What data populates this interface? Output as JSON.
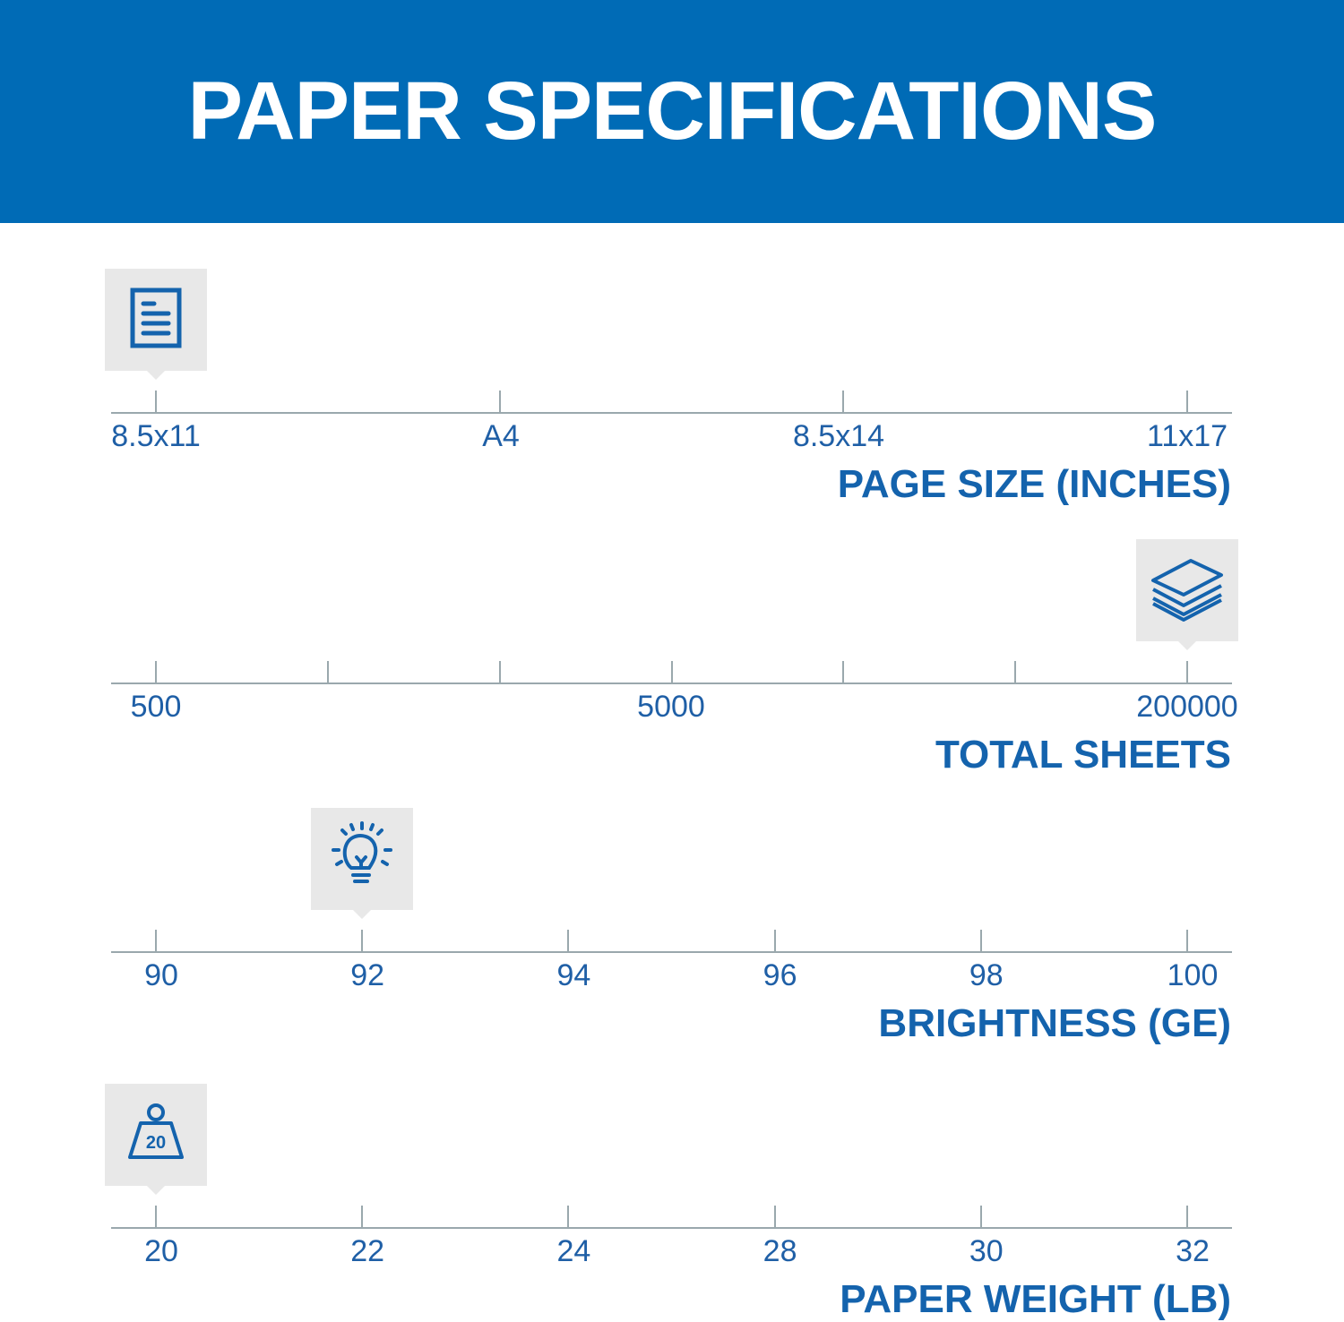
{
  "header": {
    "title": "PAPER SPECIFICATIONS"
  },
  "colors": {
    "banner": "#006bb6",
    "text": "#1f5fa6",
    "icon": "#1463ad",
    "marker_bg": "#e8e8e8"
  },
  "scales": [
    {
      "title": "PAGE SIZE (INCHES)",
      "icon": "document-icon",
      "ticks": [
        "8.5x11",
        "A4",
        "8.5x14",
        "11x17"
      ],
      "labels": [
        "8.5x11",
        "A4",
        "8.5x14",
        "11x17"
      ],
      "selected": "8.5x11"
    },
    {
      "title": "TOTAL SHEETS",
      "icon": "paper-stack-icon",
      "ticks": [
        "",
        "",
        "",
        "",
        "",
        "",
        ""
      ],
      "labels": [
        "500",
        "5000",
        "200000"
      ],
      "selected": "200000"
    },
    {
      "title": "BRIGHTNESS (GE)",
      "icon": "lightbulb-icon",
      "ticks": [
        "90",
        "92",
        "94",
        "96",
        "98",
        "100"
      ],
      "labels": [
        "90",
        "92",
        "94",
        "96",
        "98",
        "100"
      ],
      "selected": "92"
    },
    {
      "title": "PAPER WEIGHT (LB)",
      "icon": "weight-icon",
      "icon_text": "20",
      "ticks": [
        "20",
        "22",
        "24",
        "28",
        "30",
        "32"
      ],
      "labels": [
        "20",
        "22",
        "24",
        "28",
        "30",
        "32"
      ],
      "selected": "20"
    }
  ]
}
